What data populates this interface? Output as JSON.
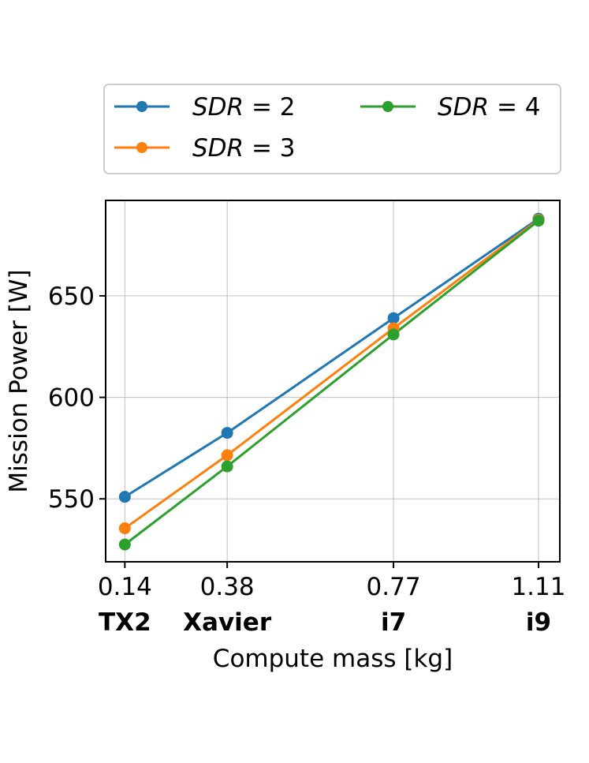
{
  "chart_data": {
    "type": "line",
    "title": "",
    "xlabel": "Compute mass [kg]",
    "ylabel": "Mission Power [W]",
    "x": [
      0.14,
      0.38,
      0.77,
      1.11
    ],
    "x_tick_labels": [
      "0.14",
      "0.38",
      "0.77",
      "1.11"
    ],
    "x_tick_sublabels": [
      "TX2",
      "Xavier",
      "i7",
      "i9"
    ],
    "xlim": [
      0.095,
      1.16
    ],
    "ylim": [
      519,
      697
    ],
    "yticks": [
      550,
      600,
      650
    ],
    "y_tick_labels": [
      "550",
      "600",
      "650"
    ],
    "grid": true,
    "legend_position": "top",
    "series": [
      {
        "name": "SDR = 2",
        "label_var": "SDR",
        "label_eq": " = ",
        "label_num": "2",
        "color": "#1f77b4",
        "values": [
          551,
          582.5,
          639,
          688
        ]
      },
      {
        "name": "SDR = 3",
        "label_var": "SDR",
        "label_eq": " = ",
        "label_num": "3",
        "color": "#ff7f0e",
        "values": [
          535.5,
          571.5,
          634,
          687.5
        ]
      },
      {
        "name": "SDR = 4",
        "label_var": "SDR",
        "label_eq": " = ",
        "label_num": "4",
        "color": "#2ca02c",
        "values": [
          527.5,
          566,
          631,
          687
        ]
      }
    ]
  }
}
